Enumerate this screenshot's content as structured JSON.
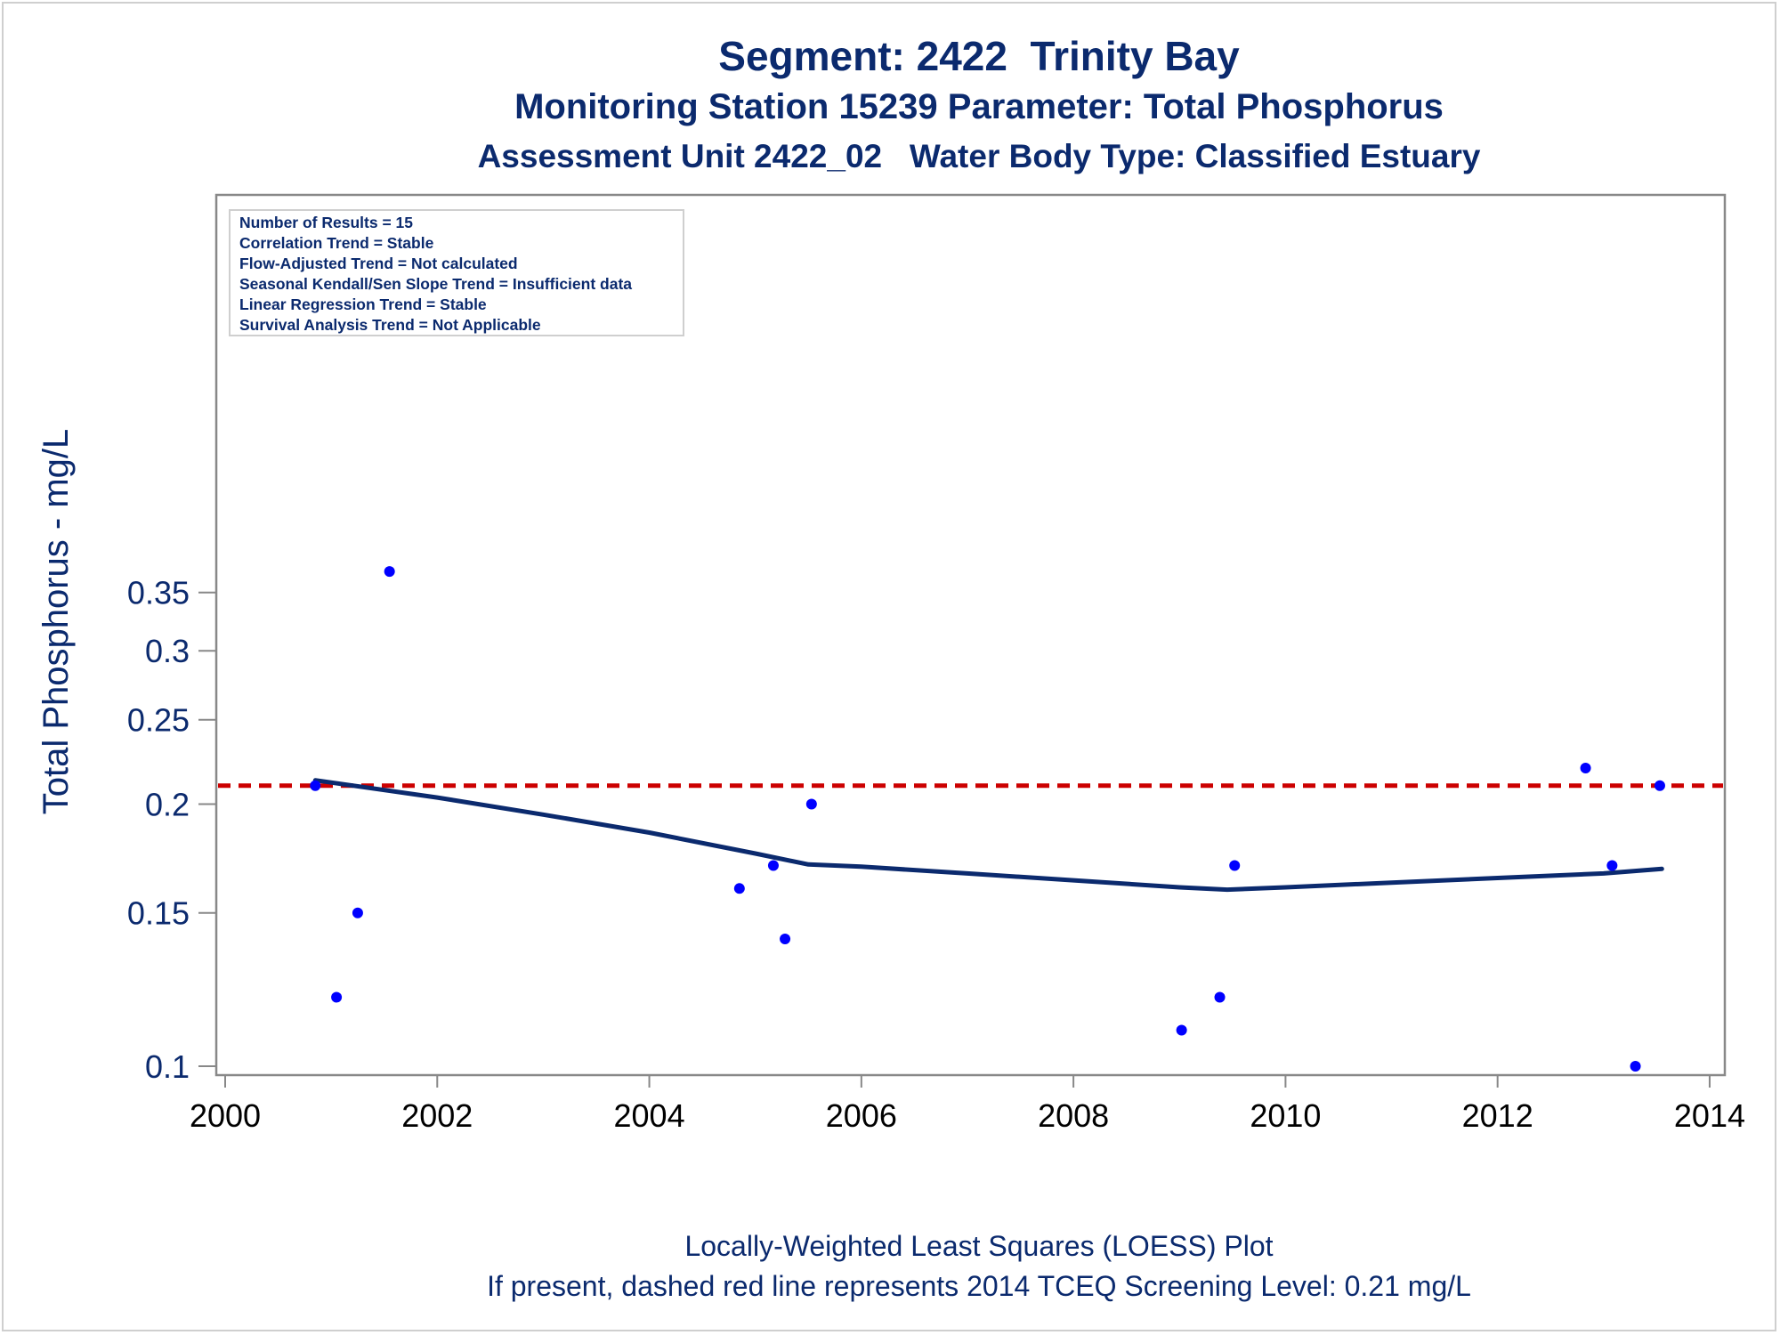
{
  "titles": {
    "line1": "Segment: 2422  Trinity Bay",
    "line2": "Monitoring Station 15239 Parameter: Total Phosphorus",
    "line3": "Assessment Unit 2422_02   Water Body Type: Classified Estuary"
  },
  "footnotes": {
    "line1": "Locally-Weighted Least Squares (LOESS) Plot",
    "line2": "If present, dashed red line represents 2014 TCEQ Screening Level: 0.21 mg/L"
  },
  "stats_box": [
    "Number of Results = 15",
    "Correlation Trend = Stable",
    "Flow-Adjusted Trend = Not calculated",
    "Seasonal Kendall/Sen Slope Trend = Insufficient data",
    "Linear Regression Trend = Stable",
    "Survival Analysis Trend = Not Applicable"
  ],
  "colors": {
    "text": "#0b2a6e",
    "points": "#0000ff",
    "loess": "#0b2a6e",
    "screening_line": "#cc0000",
    "axis": "#888888"
  },
  "chart_data": {
    "type": "scatter",
    "title": "Segment: 2422  Trinity Bay",
    "xlabel": "",
    "ylabel": "Total Phosphorus - mg/L",
    "xlim": [
      2000,
      2014
    ],
    "ylim": [
      0.1,
      0.37
    ],
    "y_scale": "log",
    "x_ticks": [
      2000,
      2002,
      2004,
      2006,
      2008,
      2010,
      2012,
      2014
    ],
    "y_ticks": [
      0.1,
      0.15,
      0.2,
      0.25,
      0.3,
      0.35
    ],
    "y_tick_labels": [
      "0.1",
      "0.15",
      "0.2",
      "0.25",
      "0.3",
      "0.35"
    ],
    "grid": false,
    "legend": "stats box top-left",
    "series": [
      {
        "type": "scatter",
        "points": [
          {
            "x": 2000.85,
            "y": 0.21
          },
          {
            "x": 2001.05,
            "y": 0.12
          },
          {
            "x": 2001.25,
            "y": 0.15
          },
          {
            "x": 2001.55,
            "y": 0.37
          },
          {
            "x": 2004.85,
            "y": 0.16
          },
          {
            "x": 2005.17,
            "y": 0.17
          },
          {
            "x": 2005.28,
            "y": 0.14
          },
          {
            "x": 2005.53,
            "y": 0.2
          },
          {
            "x": 2009.02,
            "y": 0.11
          },
          {
            "x": 2009.38,
            "y": 0.12
          },
          {
            "x": 2009.52,
            "y": 0.17
          },
          {
            "x": 2012.83,
            "y": 0.22
          },
          {
            "x": 2013.08,
            "y": 0.17
          },
          {
            "x": 2013.3,
            "y": 0.1
          },
          {
            "x": 2013.53,
            "y": 0.21
          }
        ]
      },
      {
        "type": "line",
        "points": [
          {
            "x": 2000.85,
            "y": 0.213
          },
          {
            "x": 2002.0,
            "y": 0.2035
          },
          {
            "x": 2003.0,
            "y": 0.1945
          },
          {
            "x": 2004.0,
            "y": 0.1855
          },
          {
            "x": 2005.0,
            "y": 0.1755
          },
          {
            "x": 2005.5,
            "y": 0.1705
          },
          {
            "x": 2006.0,
            "y": 0.1695
          },
          {
            "x": 2007.0,
            "y": 0.1665
          },
          {
            "x": 2008.0,
            "y": 0.1635
          },
          {
            "x": 2009.0,
            "y": 0.1605
          },
          {
            "x": 2009.45,
            "y": 0.1595
          },
          {
            "x": 2010.0,
            "y": 0.1605
          },
          {
            "x": 2011.0,
            "y": 0.1625
          },
          {
            "x": 2012.0,
            "y": 0.1645
          },
          {
            "x": 2013.0,
            "y": 0.1665
          },
          {
            "x": 2013.55,
            "y": 0.1685
          }
        ]
      }
    ],
    "reference_line": {
      "y": 0.21,
      "style": "dashed"
    }
  }
}
